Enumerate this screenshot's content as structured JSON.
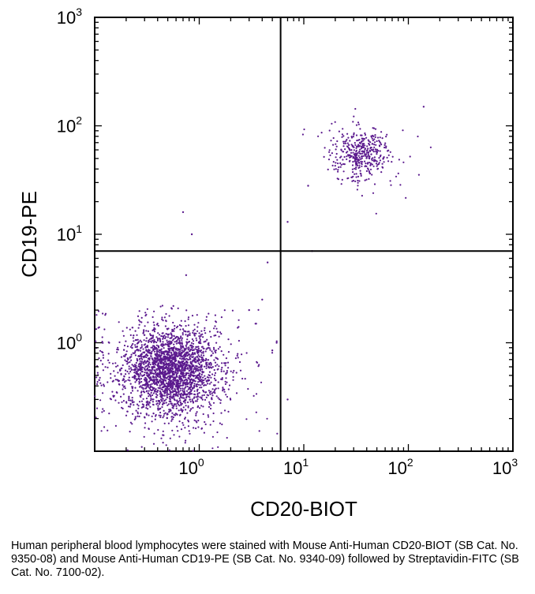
{
  "chart_data": {
    "type": "scatter",
    "title": "",
    "xlabel": "CD20-BIOT",
    "ylabel": "CD19-PE",
    "x_scale": "log",
    "y_scale": "log",
    "xlim": [
      0.1,
      1000
    ],
    "ylim": [
      0.1,
      1000
    ],
    "x_ticks": [
      {
        "value": 1,
        "base": "10",
        "exp": "0"
      },
      {
        "value": 10,
        "base": "10",
        "exp": "1"
      },
      {
        "value": 100,
        "base": "10",
        "exp": "2"
      },
      {
        "value": 1000,
        "base": "10",
        "exp": "3"
      }
    ],
    "y_ticks": [
      {
        "value": 1,
        "base": "10",
        "exp": "0"
      },
      {
        "value": 10,
        "base": "10",
        "exp": "1"
      },
      {
        "value": 100,
        "base": "10",
        "exp": "2"
      },
      {
        "value": 1000,
        "base": "10",
        "exp": "3"
      }
    ],
    "quadrant_gates": {
      "x": 6,
      "y": 7
    },
    "point_color": "#5b1a8e",
    "grid": false,
    "legend": "none",
    "populations": [
      {
        "center": [
          0.55,
          0.55
        ],
        "count": 2600
      },
      {
        "center": [
          35,
          55
        ],
        "count": 420
      }
    ],
    "outliers": [
      [
        0.7,
        16
      ],
      [
        0.85,
        10
      ],
      [
        0.75,
        4.2
      ],
      [
        4.5,
        5.5
      ],
      [
        7,
        13
      ],
      [
        12,
        7
      ],
      [
        3,
        2
      ],
      [
        5,
        0.85
      ],
      [
        6,
        0.6
      ],
      [
        7,
        0.3
      ],
      [
        5.5,
        1.0
      ],
      [
        140,
        150
      ],
      [
        11,
        28
      ],
      [
        4,
        2.5
      ],
      [
        3.5,
        1.5
      ]
    ]
  },
  "caption": {
    "text": "Human peripheral blood lymphocytes were stained with Mouse Anti-Human CD20-BIOT (SB Cat. No. 9350-08) and Mouse Anti-Human CD19-PE (SB Cat. No. 9340-09) followed by Streptavidin-FITC (SB Cat. No. 7100-02)."
  }
}
